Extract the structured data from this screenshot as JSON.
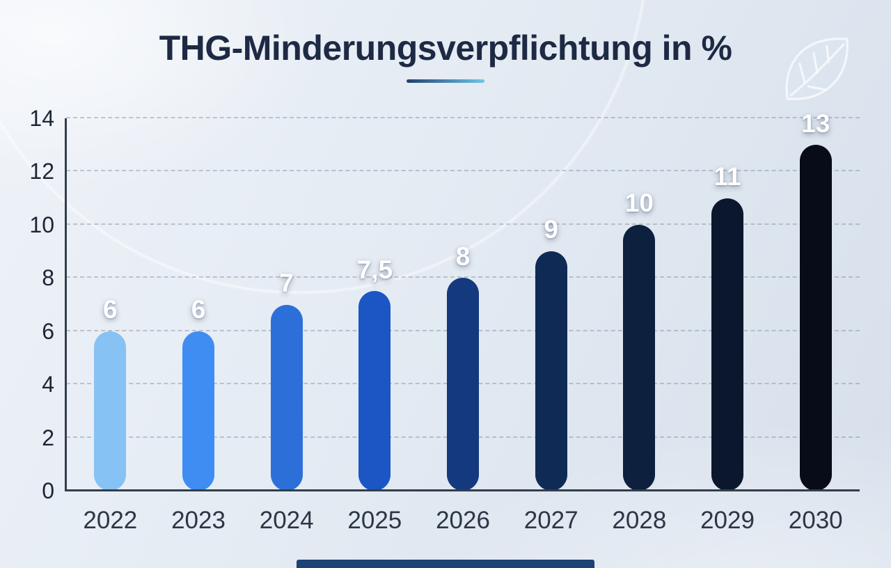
{
  "header": {
    "title": "THG-Minderungsverpflichtung in %"
  },
  "chart_data": {
    "type": "bar",
    "title": "THG-Minderungsverpflichtung in %",
    "categories": [
      "2022",
      "2023",
      "2024",
      "2025",
      "2026",
      "2027",
      "2028",
      "2029",
      "2030"
    ],
    "values": [
      6,
      6,
      7,
      7.5,
      8,
      9,
      10,
      11,
      13
    ],
    "value_labels": [
      "6",
      "6",
      "7",
      "7,5",
      "8",
      "9",
      "10",
      "11",
      "13"
    ],
    "xlabel": "",
    "ylabel": "",
    "ylim": [
      0,
      14
    ],
    "yticks": [
      0,
      2,
      4,
      6,
      8,
      10,
      12,
      14
    ],
    "grid": "horizontal dashed gridlines",
    "legend": "none",
    "bar_colors": [
      "#87c2f4",
      "#3f8df2",
      "#2d6fd9",
      "#1c55c4",
      "#14397e",
      "#102a56",
      "#0d203e",
      "#0a172c",
      "#070c18"
    ]
  },
  "decorations": {
    "leaf_icon": "leaf-icon",
    "accent_underline_colors": [
      "#23406e",
      "#6ec6e8"
    ],
    "footer_bar_color": "#1d4273"
  }
}
